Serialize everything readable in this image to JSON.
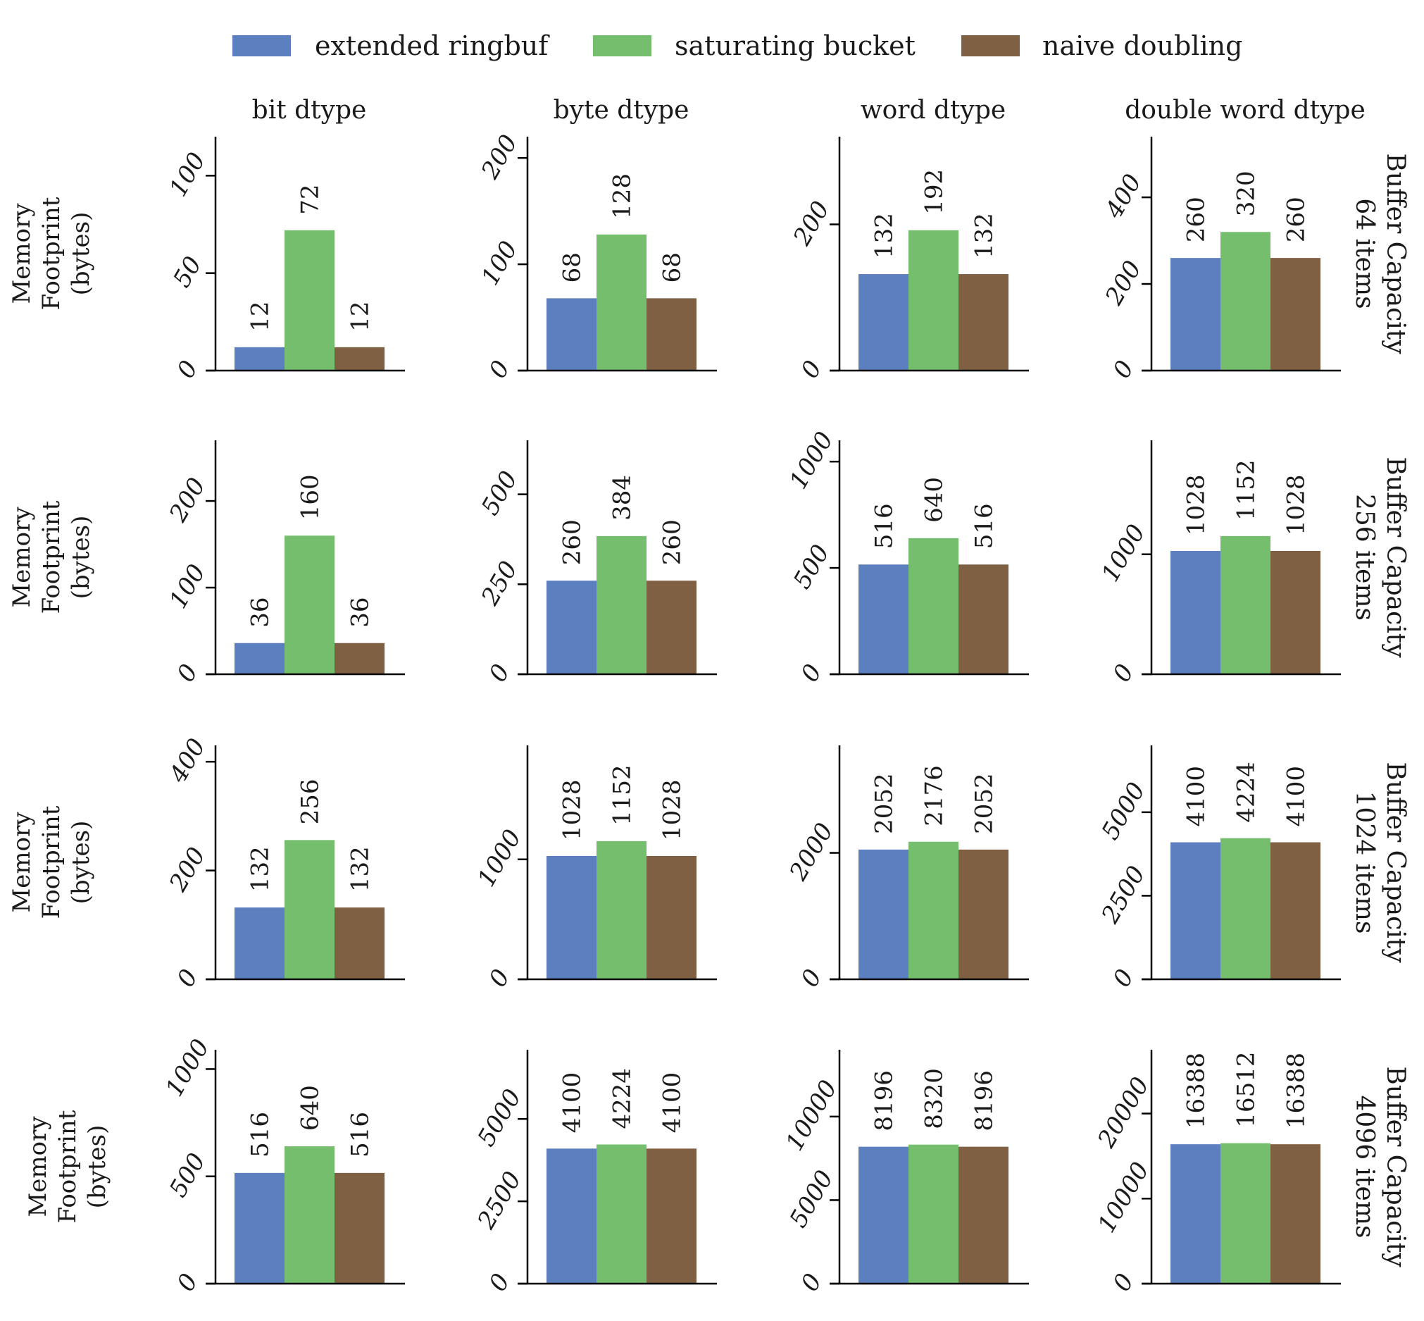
{
  "chart_data": {
    "type": "bar",
    "legend": {
      "placement": "top-center",
      "entries": [
        {
          "name": "extended ringbuf",
          "color": "#5b7fbf"
        },
        {
          "name": "saturating bucket",
          "color": "#74be6e"
        },
        {
          "name": "naive doubling",
          "color": "#806043"
        }
      ]
    },
    "column_titles": [
      "bit dtype",
      "byte dtype",
      "word dtype",
      "double word dtype"
    ],
    "row_titles": [
      [
        "Buffer Capacity",
        "64 items"
      ],
      [
        "Buffer Capacity",
        "256 items"
      ],
      [
        "Buffer Capacity",
        "1024 items"
      ],
      [
        "Buffer Capacity",
        "4096 items"
      ]
    ],
    "ylabel": [
      "Memory",
      "Footprint",
      "(bytes)"
    ],
    "panels": [
      [
        {
          "values": [
            12,
            72,
            12
          ],
          "ylim": [
            0,
            120
          ],
          "yticks": [
            0,
            50,
            100
          ]
        },
        {
          "values": [
            68,
            128,
            68
          ],
          "ylim": [
            0,
            220
          ],
          "yticks": [
            0,
            100,
            200
          ]
        },
        {
          "values": [
            132,
            192,
            132
          ],
          "ylim": [
            0,
            320
          ],
          "yticks": [
            0,
            200
          ]
        },
        {
          "values": [
            260,
            320,
            260
          ],
          "ylim": [
            0,
            540
          ],
          "yticks": [
            0,
            200,
            400
          ]
        }
      ],
      [
        {
          "values": [
            36,
            160,
            36
          ],
          "ylim": [
            0,
            270
          ],
          "yticks": [
            0,
            100,
            200
          ]
        },
        {
          "values": [
            260,
            384,
            260
          ],
          "ylim": [
            0,
            650
          ],
          "yticks": [
            0,
            250,
            500
          ]
        },
        {
          "values": [
            516,
            640,
            516
          ],
          "ylim": [
            0,
            1100
          ],
          "yticks": [
            0,
            500,
            1000
          ]
        },
        {
          "values": [
            1028,
            1152,
            1028
          ],
          "ylim": [
            0,
            1950
          ],
          "yticks": [
            0,
            1000
          ]
        }
      ],
      [
        {
          "values": [
            132,
            256,
            132
          ],
          "ylim": [
            0,
            430
          ],
          "yticks": [
            0,
            200,
            400
          ]
        },
        {
          "values": [
            1028,
            1152,
            1028
          ],
          "ylim": [
            0,
            1950
          ],
          "yticks": [
            0,
            1000
          ]
        },
        {
          "values": [
            2052,
            2176,
            2052
          ],
          "ylim": [
            0,
            3700
          ],
          "yticks": [
            0,
            2000
          ]
        },
        {
          "values": [
            4100,
            4224,
            4100
          ],
          "ylim": [
            0,
            7000
          ],
          "yticks": [
            0,
            2500,
            5000
          ]
        }
      ],
      [
        {
          "values": [
            516,
            640,
            516
          ],
          "ylim": [
            0,
            1090
          ],
          "yticks": [
            0,
            500,
            1000
          ]
        },
        {
          "values": [
            4100,
            4224,
            4100
          ],
          "ylim": [
            0,
            7100
          ],
          "yticks": [
            0,
            2500,
            5000
          ]
        },
        {
          "values": [
            8196,
            8320,
            8196
          ],
          "ylim": [
            0,
            14000
          ],
          "yticks": [
            0,
            5000,
            10000
          ]
        },
        {
          "values": [
            16388,
            16512,
            16388
          ],
          "ylim": [
            0,
            27500
          ],
          "yticks": [
            0,
            10000,
            20000
          ]
        }
      ]
    ]
  }
}
